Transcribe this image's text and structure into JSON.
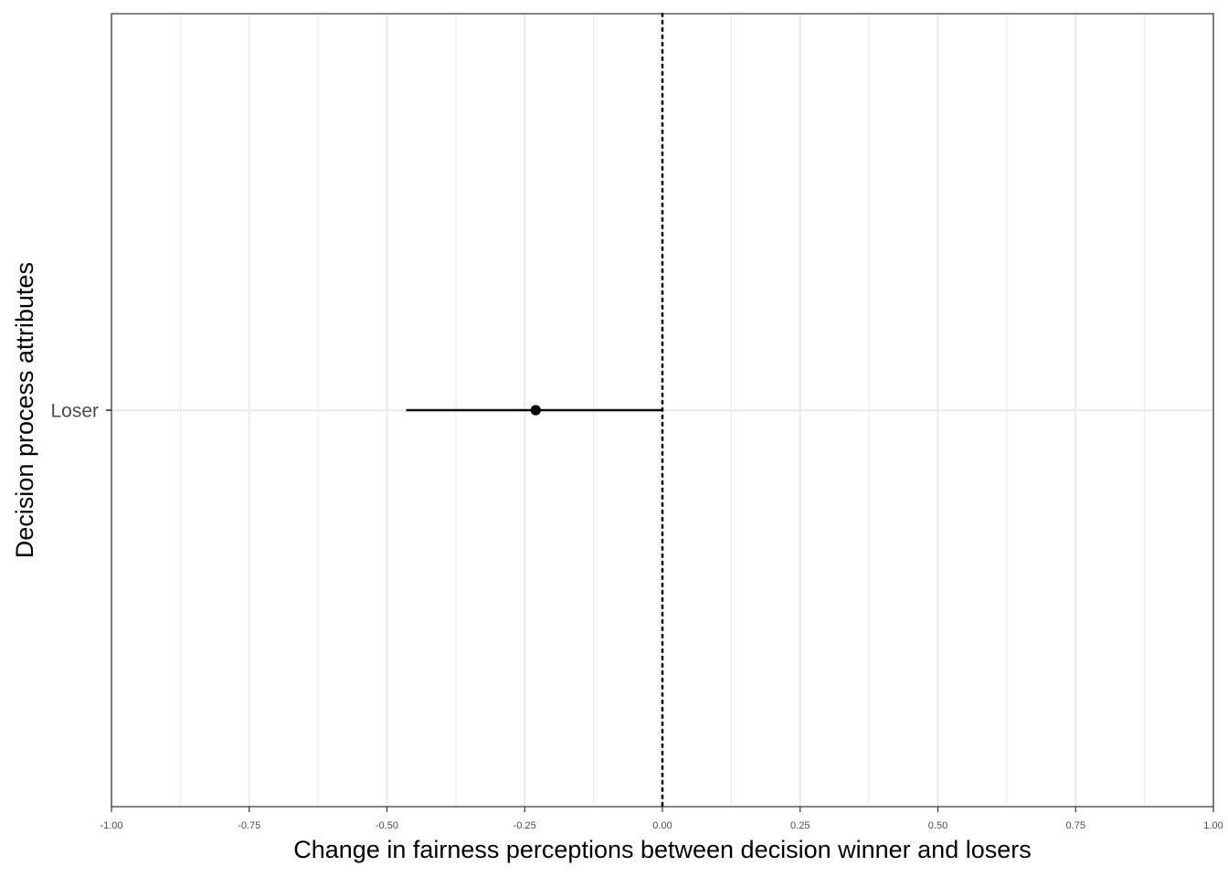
{
  "chart_data": {
    "type": "scatter",
    "title": "",
    "xlabel": "Change in fairness perceptions between decision winner and losers",
    "ylabel": "Decision process attributes",
    "xlim": [
      -1.0,
      1.0
    ],
    "x_ticks": [
      -1.0,
      -0.75,
      -0.5,
      -0.25,
      0.0,
      0.25,
      0.5,
      0.75,
      1.0
    ],
    "x_tick_labels": [
      "-1.00",
      "-0.75",
      "-0.50",
      "-0.25",
      "0.00",
      "0.25",
      "0.50",
      "0.75",
      "1.00"
    ],
    "categories": [
      "Loser"
    ],
    "points": [
      {
        "category": "Loser",
        "estimate": -0.23,
        "ci_low": -0.465,
        "ci_high": 0.0
      }
    ],
    "reference_line": {
      "x": 0.0,
      "style": "dotted"
    },
    "grid": true,
    "legend": "none",
    "colors": {
      "grid": "#ebebeb",
      "panel_border": "#333333",
      "point": "#000000",
      "tick_text": "#4d4d4d"
    }
  }
}
